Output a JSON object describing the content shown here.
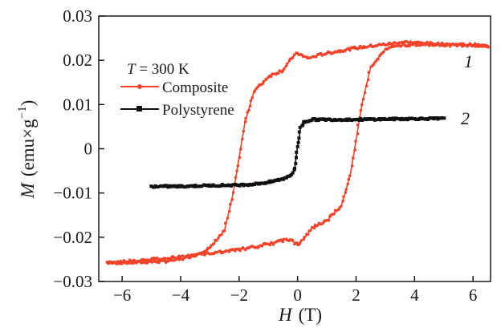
{
  "chart_data": {
    "type": "line",
    "title": "",
    "xlabel_var": "H",
    "xlabel_unit": "(T)",
    "ylabel_var": "M",
    "ylabel_unit_main": "(emu×g",
    "ylabel_unit_exp": "−1",
    "ylabel_unit_close": ")",
    "xlim": [
      -6.8,
      6.6
    ],
    "ylim": [
      -0.03,
      0.03
    ],
    "x_ticks": [
      -6,
      -4,
      -2,
      0,
      2,
      4,
      6
    ],
    "x_tick_labels": [
      "−6",
      "−4",
      "−2",
      "0",
      "2",
      "4",
      "6"
    ],
    "y_ticks": [
      0.03,
      0.02,
      0.01,
      0,
      -0.01,
      -0.02,
      -0.03
    ],
    "y_tick_labels": [
      "0.03",
      "0.02",
      "0.01",
      "0",
      "−0.01",
      "−0.02",
      "−0.03"
    ],
    "grid": false,
    "legend_position": "top-left",
    "legend_header_var": "T",
    "legend_header_rest": " = 300 K",
    "series": [
      {
        "name": "Composite",
        "color": "#f0432a",
        "marker": "circle",
        "annotation": "1",
        "upper_branch": {
          "x": [
            -6.5,
            -5.5,
            -4.5,
            -4.0,
            -3.5,
            -3.0,
            -2.5,
            -2.2,
            -2.0,
            -1.8,
            -1.5,
            -1.0,
            -0.5,
            -0.2,
            0.0,
            0.2,
            0.4,
            0.8,
            1.5,
            2.0,
            3.0,
            3.6,
            4.0,
            5.0,
            6.0,
            6.5
          ],
          "y": [
            -0.0258,
            -0.0257,
            -0.0254,
            -0.025,
            -0.024,
            -0.0225,
            -0.0185,
            -0.01,
            -0.002,
            0.006,
            0.0128,
            0.0163,
            0.0178,
            0.0205,
            0.0217,
            0.0208,
            0.0205,
            0.0213,
            0.0222,
            0.0228,
            0.0236,
            0.0241,
            0.024,
            0.0236,
            0.0235,
            0.0232
          ]
        },
        "lower_branch": {
          "x": [
            6.5,
            5.5,
            4.5,
            4.0,
            3.5,
            3.0,
            2.5,
            2.2,
            2.0,
            1.8,
            1.5,
            1.0,
            0.5,
            0.2,
            0.0,
            -0.2,
            -0.4,
            -0.8,
            -1.5,
            -2.0,
            -3.0,
            -4.0,
            -5.0,
            -6.5
          ],
          "y": [
            0.0233,
            0.0234,
            0.0236,
            0.0236,
            0.0233,
            0.0225,
            0.0185,
            0.01,
            0.002,
            -0.006,
            -0.0128,
            -0.0163,
            -0.0178,
            -0.0205,
            -0.0217,
            -0.0208,
            -0.0205,
            -0.0213,
            -0.0222,
            -0.0228,
            -0.0236,
            -0.0244,
            -0.025,
            -0.0258
          ]
        }
      },
      {
        "name": "Polystyrene",
        "color": "#111111",
        "marker": "square",
        "annotation": "2",
        "x": [
          -5.0,
          -4.5,
          -4.0,
          -3.0,
          -2.0,
          -1.5,
          -1.0,
          -0.5,
          -0.2,
          -0.1,
          -0.05,
          0.0,
          0.05,
          0.1,
          0.2,
          0.5,
          1.0,
          2.0,
          3.0,
          4.0,
          5.0
        ],
        "y": [
          -0.0085,
          -0.0085,
          -0.0085,
          -0.0083,
          -0.0082,
          -0.008,
          -0.0076,
          -0.0068,
          -0.0058,
          -0.0045,
          -0.002,
          0.0005,
          0.0025,
          0.0048,
          0.006,
          0.0066,
          0.0066,
          0.0066,
          0.0067,
          0.0068,
          0.0068
        ]
      }
    ]
  }
}
